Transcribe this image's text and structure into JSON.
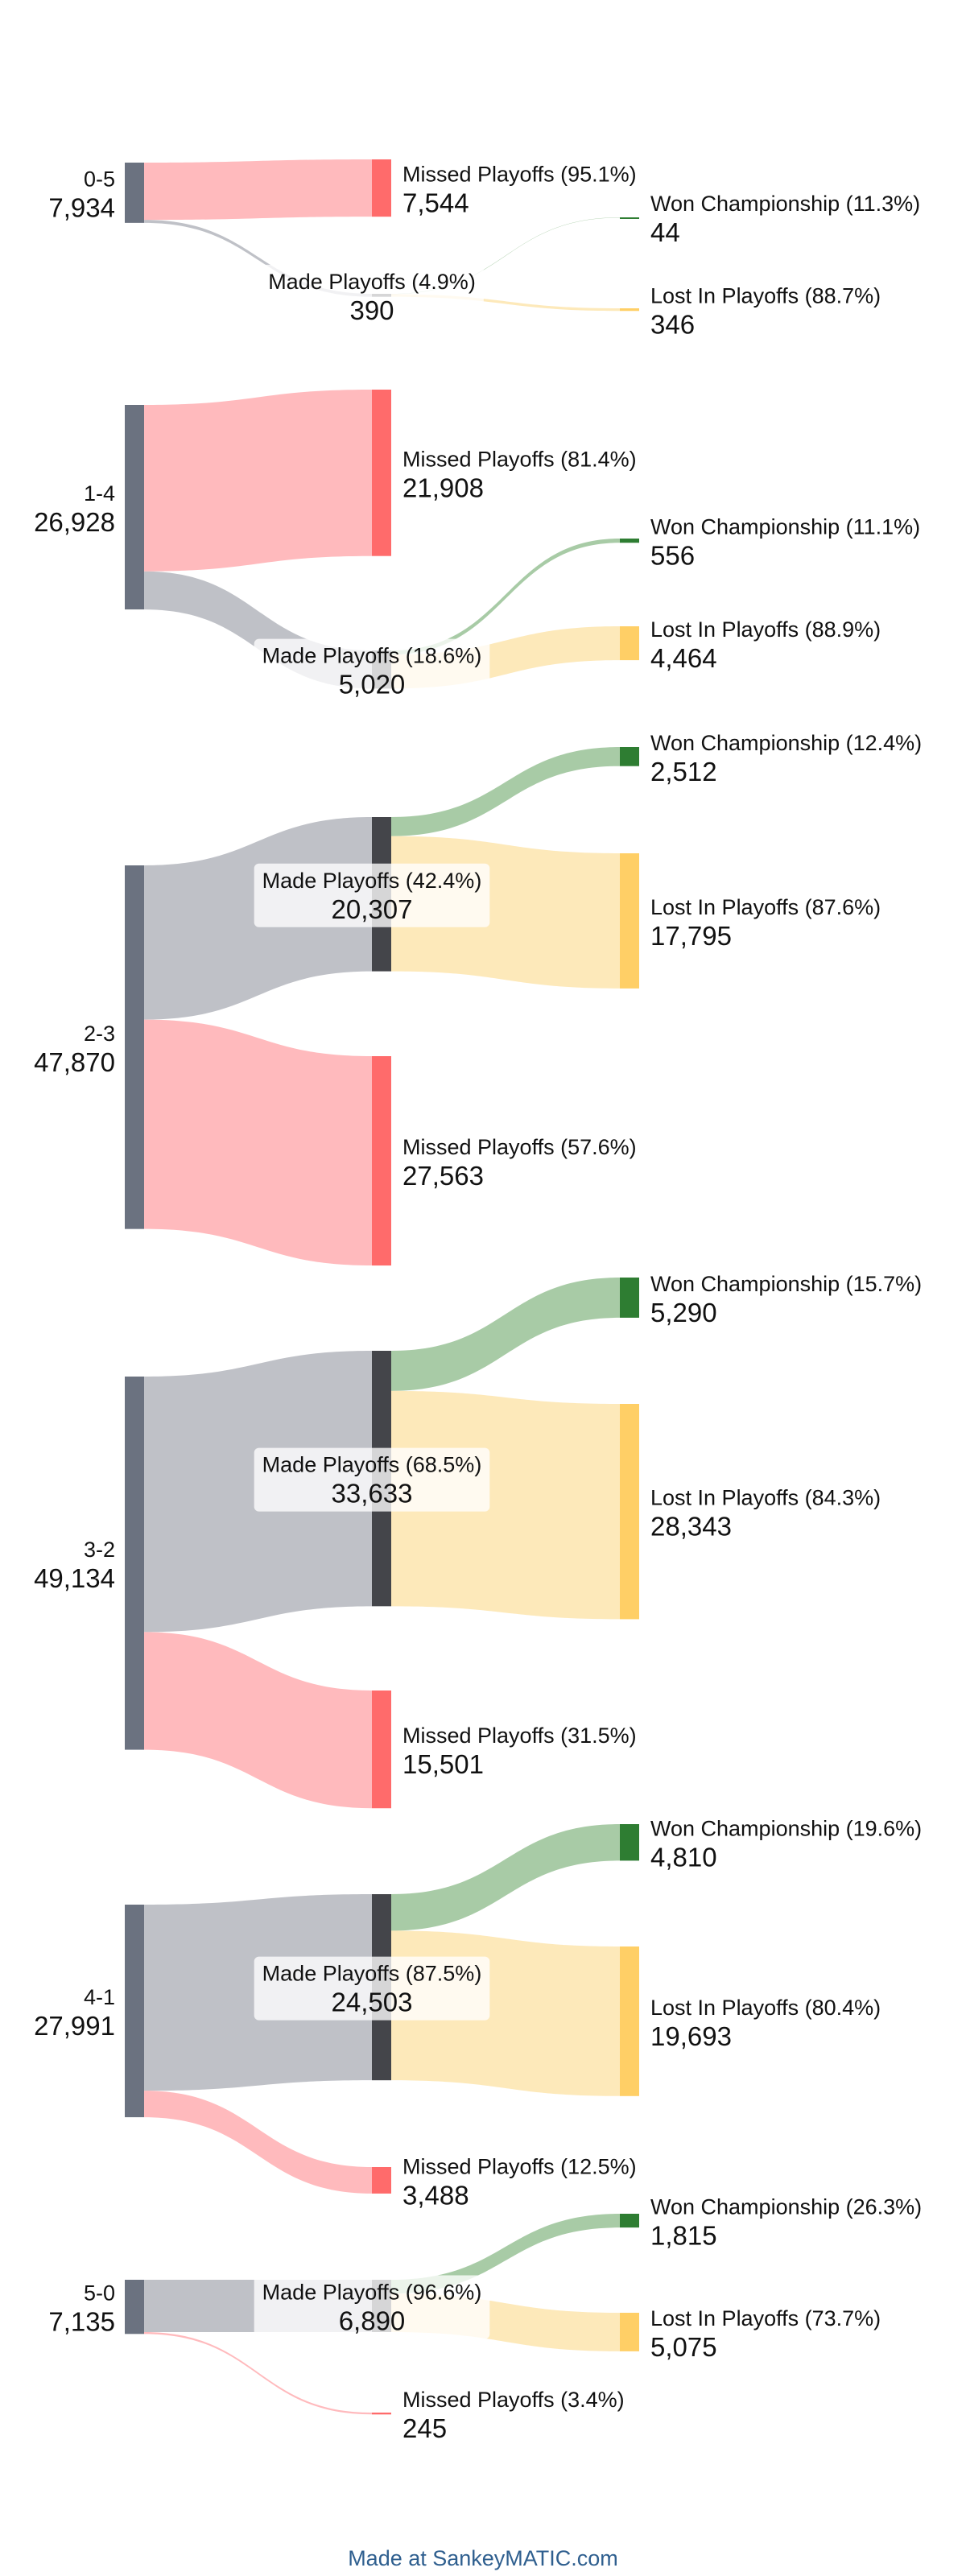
{
  "chart_data": {
    "type": "sankey",
    "colors": {
      "start": "#6b7280",
      "made": "#44454a",
      "missed": "#ff6b6b",
      "won": "#2e7d32",
      "lost": "#ffcf66",
      "flow_made": "#bcbec4",
      "flow_missed": "#ffb6b9",
      "flow_won": "#a3c8a1",
      "flow_lost": "#fde8b6"
    },
    "groups": [
      {
        "start": {
          "label": "0-5",
          "value": "7,934"
        },
        "made": {
          "label": "Made Playoffs (4.9%)",
          "value": "390",
          "n": 390
        },
        "missed": {
          "label": "Missed Playoffs (95.1%)",
          "value": "7,544",
          "n": 7544
        },
        "won": {
          "label": "Won Championship (11.3%)",
          "value": "44",
          "n": 44
        },
        "lost": {
          "label": "Lost In Playoffs (88.7%)",
          "value": "346",
          "n": 346
        }
      },
      {
        "start": {
          "label": "1-4",
          "value": "26,928"
        },
        "made": {
          "label": "Made Playoffs (18.6%)",
          "value": "5,020",
          "n": 5020
        },
        "missed": {
          "label": "Missed Playoffs (81.4%)",
          "value": "21,908",
          "n": 21908
        },
        "won": {
          "label": "Won Championship (11.1%)",
          "value": "556",
          "n": 556
        },
        "lost": {
          "label": "Lost In Playoffs (88.9%)",
          "value": "4,464",
          "n": 4464
        }
      },
      {
        "start": {
          "label": "2-3",
          "value": "47,870"
        },
        "made": {
          "label": "Made Playoffs (42.4%)",
          "value": "20,307",
          "n": 20307
        },
        "missed": {
          "label": "Missed Playoffs (57.6%)",
          "value": "27,563",
          "n": 27563
        },
        "won": {
          "label": "Won Championship (12.4%)",
          "value": "2,512",
          "n": 2512
        },
        "lost": {
          "label": "Lost In Playoffs (87.6%)",
          "value": "17,795",
          "n": 17795
        }
      },
      {
        "start": {
          "label": "3-2",
          "value": "49,134"
        },
        "made": {
          "label": "Made Playoffs (68.5%)",
          "value": "33,633",
          "n": 33633
        },
        "missed": {
          "label": "Missed Playoffs (31.5%)",
          "value": "15,501",
          "n": 15501
        },
        "won": {
          "label": "Won Championship (15.7%)",
          "value": "5,290",
          "n": 5290
        },
        "lost": {
          "label": "Lost In Playoffs (84.3%)",
          "value": "28,343",
          "n": 28343
        }
      },
      {
        "start": {
          "label": "4-1",
          "value": "27,991"
        },
        "made": {
          "label": "Made Playoffs (87.5%)",
          "value": "24,503",
          "n": 24503
        },
        "missed": {
          "label": "Missed Playoffs (12.5%)",
          "value": "3,488",
          "n": 3488
        },
        "won": {
          "label": "Won Championship (19.6%)",
          "value": "4,810",
          "n": 4810
        },
        "lost": {
          "label": "Lost In Playoffs (80.4%)",
          "value": "19,693",
          "n": 19693
        }
      },
      {
        "start": {
          "label": "5-0",
          "value": "7,135"
        },
        "made": {
          "label": "Made Playoffs (96.6%)",
          "value": "6,890",
          "n": 6890
        },
        "missed": {
          "label": "Missed Playoffs (3.4%)",
          "value": "245",
          "n": 245
        },
        "won": {
          "label": "Won Championship (26.3%)",
          "value": "1,815",
          "n": 1815
        },
        "lost": {
          "label": "Lost In Playoffs (73.7%)",
          "value": "5,075",
          "n": 5075
        }
      }
    ]
  },
  "footer": {
    "credit": "Made at SankeyMATIC.com"
  }
}
